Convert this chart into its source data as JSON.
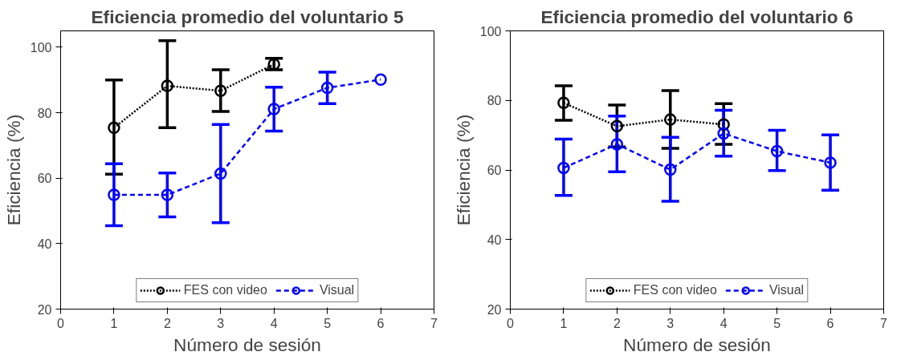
{
  "chart_data": [
    {
      "type": "line",
      "title": "Eficiencia promedio del voluntario 5",
      "xlabel": "Número de sesión",
      "ylabel": "Eficiencia (%)",
      "x": [
        1,
        2,
        3,
        4,
        5,
        6
      ],
      "xlim": [
        0,
        7
      ],
      "xticks": [
        0,
        1,
        2,
        3,
        4,
        5,
        6,
        7
      ],
      "ylim": [
        20,
        105
      ],
      "yticks": [
        20,
        40,
        60,
        80,
        100
      ],
      "marker": "circle",
      "legend": "bottom",
      "series": [
        {
          "name": "FES con video",
          "color": "#000000",
          "line_style": "dotted",
          "values": [
            75.4,
            88.2,
            86.7,
            94.8,
            null,
            null
          ],
          "errors": [
            [
              61.2,
              90
            ],
            [
              75.4,
              102
            ],
            [
              80.4,
              93.1
            ],
            [
              93.1,
              96.6
            ],
            null,
            null
          ]
        },
        {
          "name": "Visual",
          "color": "#0000ff",
          "line_style": "dashed",
          "values": [
            54.9,
            54.9,
            61.4,
            81.1,
            87.6,
            90.1
          ],
          "errors": [
            [
              45.5,
              64.4
            ],
            [
              48.2,
              61.6
            ],
            [
              46.4,
              76.4
            ],
            [
              74.4,
              87.8
            ],
            [
              82.8,
              92.4
            ],
            null
          ]
        }
      ]
    },
    {
      "type": "line",
      "title": "Eficiencia promedio del voluntario 6",
      "xlabel": "Número de sesión",
      "ylabel": "Eficiencia (%)",
      "x": [
        1,
        2,
        3,
        4,
        5,
        6
      ],
      "xlim": [
        0,
        7
      ],
      "xticks": [
        0,
        1,
        2,
        3,
        4,
        5,
        6,
        7
      ],
      "ylim": [
        20,
        100
      ],
      "yticks": [
        20,
        40,
        60,
        80,
        100
      ],
      "marker": "circle",
      "legend": "bottom",
      "series": [
        {
          "name": "FES con video",
          "color": "#000000",
          "line_style": "dotted",
          "values": [
            79.3,
            72.6,
            74.5,
            73.1,
            null,
            null
          ],
          "errors": [
            [
              74.3,
              84.2
            ],
            [
              66.6,
              78.7
            ],
            [
              66.2,
              82.8
            ],
            [
              67.4,
              79.1
            ],
            null,
            null
          ]
        },
        {
          "name": "Visual",
          "color": "#0000ff",
          "line_style": "dashed",
          "values": [
            60.6,
            67.4,
            60.1,
            70.5,
            65.4,
            62.1
          ],
          "errors": [
            [
              52.7,
              68.9
            ],
            [
              59.5,
              75.5
            ],
            [
              51.0,
              69.4
            ],
            [
              64.0,
              77.2
            ],
            [
              59.8,
              71.4
            ],
            [
              54.2,
              70.1
            ]
          ]
        }
      ]
    }
  ]
}
